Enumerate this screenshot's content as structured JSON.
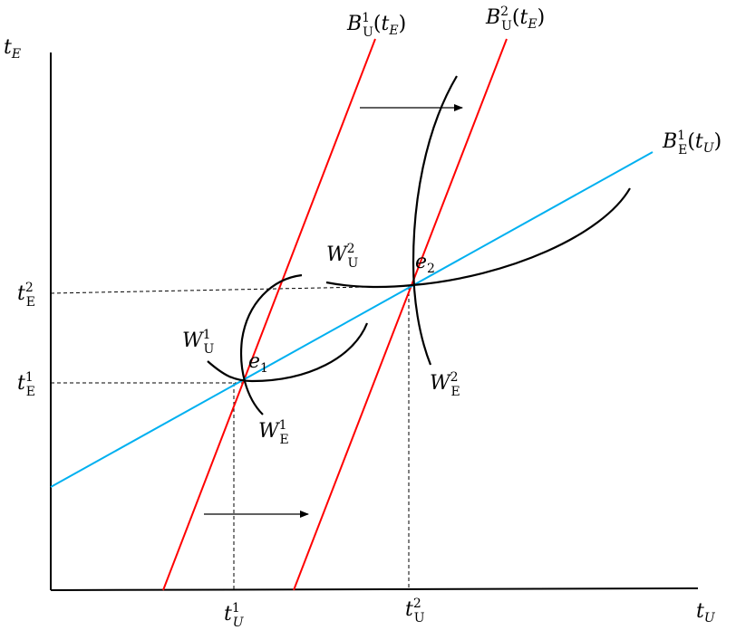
{
  "axes": {
    "y_label": {
      "main": "t",
      "sub": "E"
    },
    "x_label": {
      "main": "t",
      "sub": "U"
    }
  },
  "curves": {
    "bu1": {
      "main": "B",
      "sub": "U",
      "sup": "1",
      "arg_main": "t",
      "arg_sub": "E",
      "color": "#ff0000"
    },
    "bu2": {
      "main": "B",
      "sub": "U",
      "sup": "2",
      "arg_main": "t",
      "arg_sub": "E",
      "color": "#ff0000"
    },
    "be1": {
      "main": "B",
      "sub": "E",
      "sup": "1",
      "arg_main": "t",
      "arg_sub": "U",
      "color": "#00b0f0"
    },
    "wu1": {
      "main": "W",
      "sub": "U",
      "sup": "1"
    },
    "wu2": {
      "main": "W",
      "sub": "U",
      "sup": "2"
    },
    "we1": {
      "main": "W",
      "sub": "E",
      "sup": "1"
    },
    "we2": {
      "main": "W",
      "sub": "E",
      "sup": "2"
    }
  },
  "points": {
    "e1": {
      "main": "e",
      "sub": "1"
    },
    "e2": {
      "main": "e",
      "sub": "2"
    }
  },
  "ticks": {
    "tE1": {
      "main": "t",
      "sub": "E",
      "sup": "1"
    },
    "tE2": {
      "main": "t",
      "sub": "E",
      "sup": "2"
    },
    "tU1": {
      "main": "t",
      "sub": "U",
      "sup": "1"
    },
    "tU2": {
      "main": "t",
      "sub": "U",
      "sup": "2"
    }
  }
}
